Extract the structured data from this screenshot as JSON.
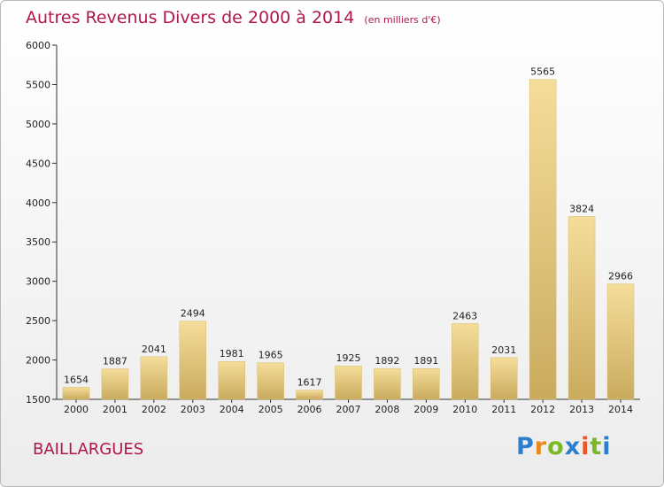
{
  "title": "Autres Revenus Divers de 2000 à 2014",
  "subtitle": "(en milliers d'€)",
  "commune": "BAILLARGUES",
  "logo": {
    "p": "P",
    "r": "r",
    "o": "o",
    "x": "x",
    "i1": "i",
    "t": "t",
    "i2": "i"
  },
  "chart_data": {
    "type": "bar",
    "categories": [
      "2000",
      "2001",
      "2002",
      "2003",
      "2004",
      "2005",
      "2006",
      "2007",
      "2008",
      "2009",
      "2010",
      "2011",
      "2012",
      "2013",
      "2014"
    ],
    "values": [
      1654,
      1887,
      2041,
      2494,
      1981,
      1965,
      1617,
      1925,
      1892,
      1891,
      2463,
      2031,
      5565,
      3824,
      2966
    ],
    "yticks": [
      1500,
      2000,
      2500,
      3000,
      3500,
      4000,
      4500,
      5000,
      5500,
      6000
    ],
    "ylim": [
      1500,
      6000
    ],
    "grid": false,
    "bar_color": "#e8cc82"
  }
}
